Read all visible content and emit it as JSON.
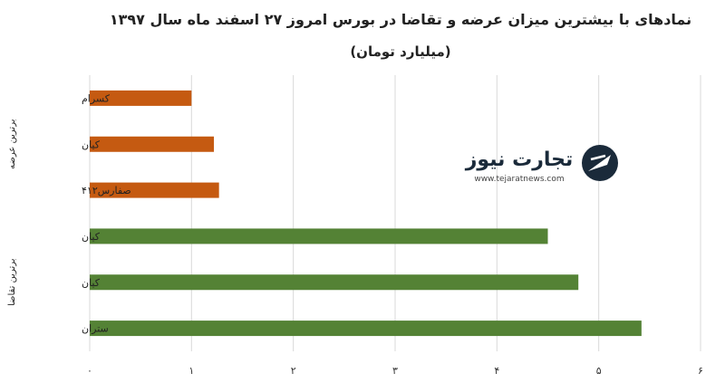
{
  "chart_data": {
    "type": "bar",
    "orientation": "horizontal",
    "title": "نمادهای با بیشترین میزان عرضه و تقاضا در بورس امروز ۲۷ اسفند ماه سال ۱۳۹۷",
    "subtitle": "(میلیارد تومان)",
    "xlabel": "",
    "ylabel": "",
    "xlim": [
      0,
      6
    ],
    "x_ticks": [
      "۰",
      "۱",
      "۲",
      "۳",
      "۴",
      "۵",
      "۶"
    ],
    "grid": true,
    "groups": [
      {
        "label": "برترین عرضه",
        "color": "#c55a11",
        "categories": [
          "کسرام",
          "کیان",
          "صفارس۴۱۲"
        ],
        "values": [
          1.0,
          1.22,
          1.27
        ]
      },
      {
        "label": "برترین تقاضا",
        "color": "#548235",
        "categories": [
          "کیان",
          "کیان",
          "ستران"
        ],
        "values": [
          4.5,
          4.8,
          5.42
        ]
      }
    ]
  },
  "watermark": {
    "brand": "تجارت نیوز",
    "url": "www.tejaratnews.com",
    "color": "#1a2a3a",
    "icon": "tejarat-news-logo-icon"
  }
}
